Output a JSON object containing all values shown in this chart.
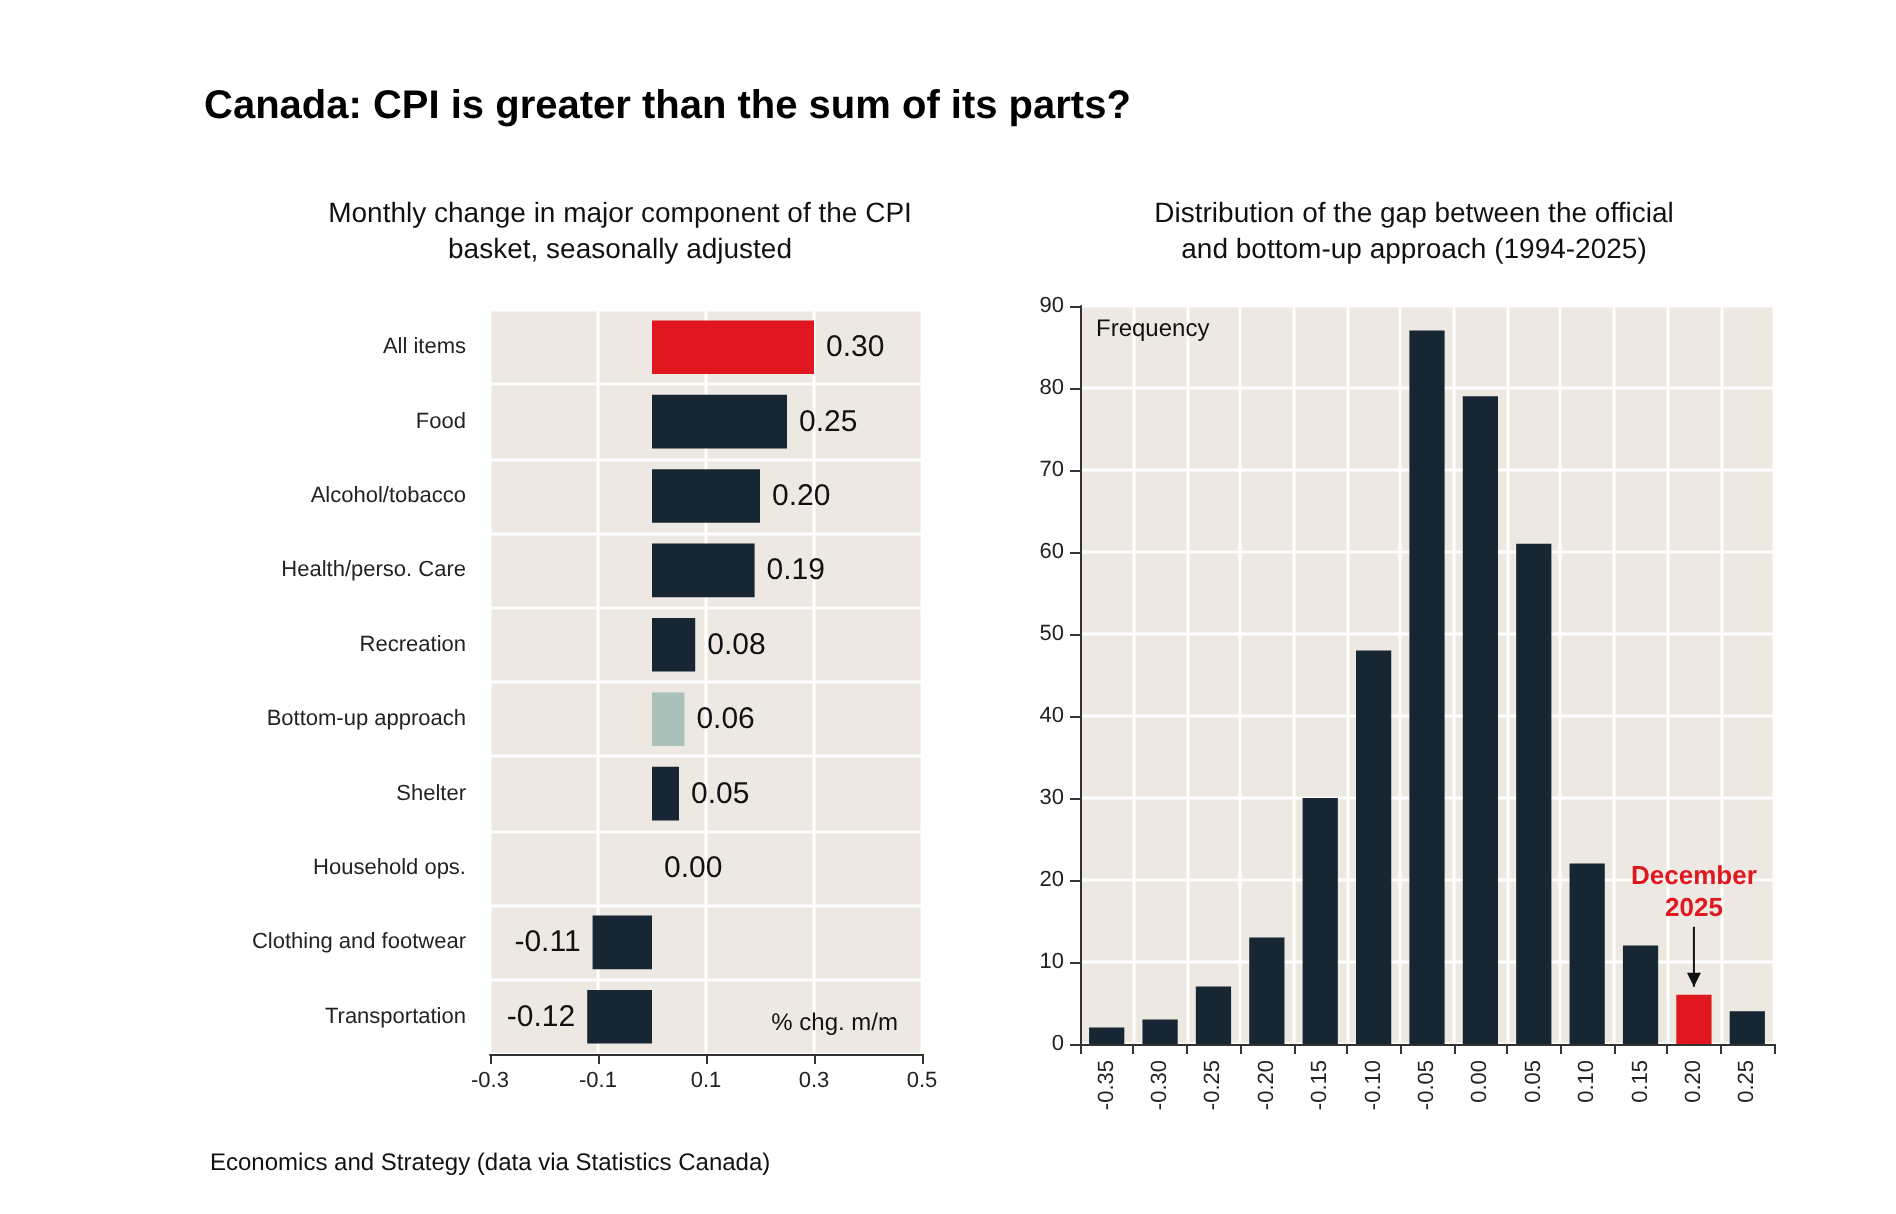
{
  "chart_data": [
    {
      "type": "bar",
      "orientation": "horizontal",
      "title": "Canada: CPI is greater than the sum of its parts?",
      "subtitle": "Monthly change in major component of the CPI\nbasket, seasonally adjusted",
      "categories": [
        "All items",
        "Food",
        "Alcohol/tobacco",
        "Health/perso. Care",
        "Recreation",
        "Bottom-up approach",
        "Shelter",
        "Household ops.",
        "Clothing and footwear",
        "Transportation"
      ],
      "values": [
        0.3,
        0.25,
        0.2,
        0.19,
        0.08,
        0.06,
        0.05,
        0.0,
        -0.11,
        -0.12
      ],
      "value_labels": [
        "0.30",
        "0.25",
        "0.20",
        "0.19",
        "0.08",
        "0.06",
        "0.05",
        "0.00",
        "-0.11",
        "-0.12"
      ],
      "colors": [
        "#e0171f",
        "#172633",
        "#172633",
        "#172633",
        "#172633",
        "#a9c1b8",
        "#172633",
        "#172633",
        "#172633",
        "#172633"
      ],
      "xlim": [
        -0.3,
        0.5
      ],
      "xticks": [
        -0.3,
        -0.1,
        0.1,
        0.3,
        0.5
      ],
      "grid": true,
      "annotations": [
        "% chg. m/m",
        "Economics and Strategy (data via Statistics Canada)"
      ]
    },
    {
      "type": "bar",
      "subtitle": "Distribution of the gap between the official\nand bottom-up approach (1994-2025)",
      "ylabel": "Frequency",
      "categories": [
        "-0.35",
        "-0.30",
        "-0.25",
        "-0.20",
        "-0.15",
        "-0.10",
        "-0.05",
        "0.00",
        "0.05",
        "0.10",
        "0.15",
        "0.20",
        "0.25"
      ],
      "values": [
        2,
        3,
        7,
        13,
        30,
        48,
        87,
        79,
        61,
        22,
        12,
        6,
        4
      ],
      "colors": [
        "#172633",
        "#172633",
        "#172633",
        "#172633",
        "#172633",
        "#172633",
        "#172633",
        "#172633",
        "#172633",
        "#172633",
        "#172633",
        "#e0171f",
        "#172633"
      ],
      "ylim": [
        0,
        90
      ],
      "yticks": [
        0,
        10,
        20,
        30,
        40,
        50,
        60,
        70,
        80,
        90
      ],
      "grid": true,
      "annotations": [
        {
          "text": "December\n2025",
          "x": "0.20",
          "y": 6
        }
      ]
    }
  ]
}
